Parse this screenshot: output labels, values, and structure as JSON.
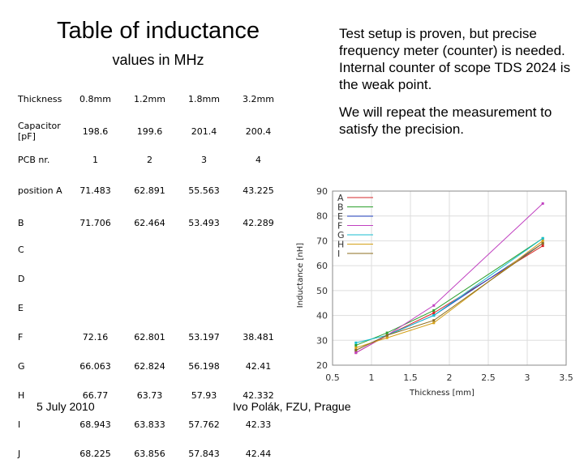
{
  "slide": {
    "title": "Table of inductance",
    "subtitle": "values in MHz",
    "note1": "Test setup is proven, but precise frequency meter (counter) is needed. Internal counter of scope TDS 2024 is the weak point.",
    "note2": "We will repeat the measurement to satisfy the precision.",
    "footer_left": "5 July 2010",
    "footer_right": "Ivo Polák, FZU, Prague"
  },
  "table": {
    "header": [
      "Thickness",
      "0.8mm",
      "1.2mm",
      "1.8mm",
      "3.2mm"
    ],
    "capacitor": [
      "Capacitor [pF]",
      "198.6",
      "199.6",
      "201.4",
      "200.4"
    ],
    "pcb": [
      "PCB nr.",
      "1",
      "2",
      "3",
      "4"
    ],
    "rows": [
      [
        "position A",
        "71.483",
        "62.891",
        "55.563",
        "43.225"
      ],
      [
        "B",
        "71.706",
        "62.464",
        "53.493",
        "42.289"
      ],
      [
        "C",
        "",
        "",
        "",
        ""
      ],
      [
        "D",
        "",
        "",
        "",
        ""
      ],
      [
        "E",
        "",
        "",
        "",
        ""
      ],
      [
        "F",
        "72.16",
        "62.801",
        "53.197",
        "38.481"
      ],
      [
        "G",
        "66.063",
        "62.824",
        "56.198",
        "42.41"
      ],
      [
        "H",
        "66.77",
        "63.73",
        "57.93",
        "42.332"
      ],
      [
        "I",
        "68.943",
        "63.833",
        "57.762",
        "42.33"
      ],
      [
        "J",
        "68.225",
        "63.856",
        "57.843",
        "42.44"
      ]
    ]
  },
  "chart_data": {
    "type": "line",
    "xlabel": "Thickness [mm]",
    "ylabel": "Inductance [nH]",
    "xlim": [
      0.5,
      3.5
    ],
    "ylim": [
      20,
      90
    ],
    "xticks": [
      "0.5",
      "1",
      "1.5",
      "2",
      "2.5",
      "3",
      "3.5"
    ],
    "yticks": [
      "20",
      "30",
      "40",
      "50",
      "60",
      "70",
      "80",
      "90"
    ],
    "grid": true,
    "legend_position": "top-left",
    "x": [
      0.8,
      1.2,
      1.8,
      3.2
    ],
    "series": [
      {
        "name": "A",
        "color": "#d62728",
        "values": [
          25,
          32,
          41,
          68
        ]
      },
      {
        "name": "B",
        "color": "#2ca02c",
        "values": [
          28,
          33,
          42,
          71
        ]
      },
      {
        "name": "E",
        "color": "#1f3fbf",
        "values": [
          26,
          32,
          40,
          69
        ]
      },
      {
        "name": "F",
        "color": "#c040c0",
        "values": [
          25,
          32,
          44,
          85
        ]
      },
      {
        "name": "G",
        "color": "#17becf",
        "values": [
          29,
          32,
          40,
          71
        ]
      },
      {
        "name": "H",
        "color": "#d4a017",
        "values": [
          27,
          31,
          37,
          70
        ]
      },
      {
        "name": "I",
        "color": "#8c6d1f",
        "values": [
          26,
          32,
          38,
          69
        ]
      }
    ]
  }
}
